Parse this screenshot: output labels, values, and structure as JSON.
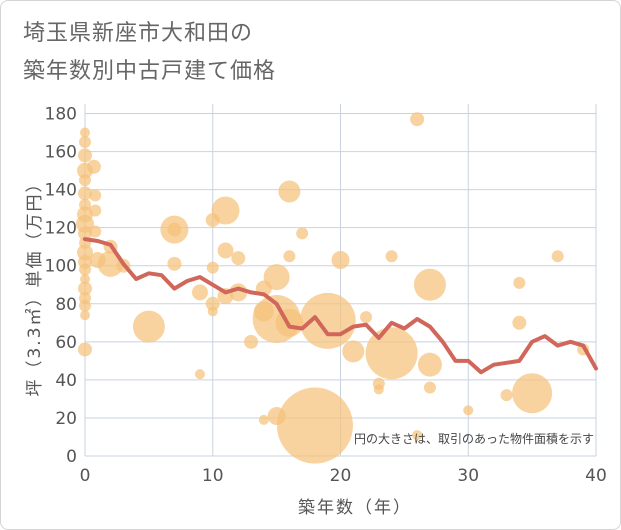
{
  "chart_data": {
    "type": "scatter",
    "title_lines": [
      "埼玉県新座市大和田の",
      "築年数別中古戸建て価格"
    ],
    "xlabel": "築年数（年）",
    "ylabel": "坪（3.3㎡）単価（万円）",
    "note": "円の大きさは、取引のあった物件面積を示す",
    "xlim": [
      0,
      40
    ],
    "ylim": [
      0,
      185
    ],
    "x_ticks": [
      0,
      10,
      20,
      30,
      40
    ],
    "y_ticks": [
      0,
      20,
      40,
      60,
      80,
      100,
      120,
      140,
      160,
      180
    ],
    "grid": true,
    "colors": {
      "bubble": "#f5c27a",
      "line": "#d0675a",
      "grid": "#c9d3e0",
      "text": "#555555"
    },
    "bubbles": [
      {
        "x": 0,
        "y": 170,
        "r": 5
      },
      {
        "x": 0,
        "y": 165,
        "r": 6
      },
      {
        "x": 0,
        "y": 158,
        "r": 7
      },
      {
        "x": 0,
        "y": 150,
        "r": 8
      },
      {
        "x": 0,
        "y": 145,
        "r": 6
      },
      {
        "x": 0,
        "y": 138,
        "r": 7
      },
      {
        "x": 0,
        "y": 132,
        "r": 6
      },
      {
        "x": 0,
        "y": 127,
        "r": 8
      },
      {
        "x": 0,
        "y": 122,
        "r": 9
      },
      {
        "x": 0,
        "y": 117,
        "r": 7
      },
      {
        "x": 0,
        "y": 112,
        "r": 6
      },
      {
        "x": 0,
        "y": 107,
        "r": 8
      },
      {
        "x": 0,
        "y": 102,
        "r": 7
      },
      {
        "x": 0,
        "y": 98,
        "r": 6
      },
      {
        "x": 0,
        "y": 93,
        "r": 5
      },
      {
        "x": 0,
        "y": 88,
        "r": 7
      },
      {
        "x": 0,
        "y": 83,
        "r": 6
      },
      {
        "x": 0,
        "y": 79,
        "r": 6
      },
      {
        "x": 0,
        "y": 74,
        "r": 5
      },
      {
        "x": 0,
        "y": 56,
        "r": 7
      },
      {
        "x": 0.7,
        "y": 152,
        "r": 7
      },
      {
        "x": 0.8,
        "y": 137,
        "r": 6
      },
      {
        "x": 0.8,
        "y": 129,
        "r": 6
      },
      {
        "x": 0.8,
        "y": 118,
        "r": 6
      },
      {
        "x": 1,
        "y": 103,
        "r": 8
      },
      {
        "x": 2,
        "y": 110,
        "r": 7
      },
      {
        "x": 2,
        "y": 101,
        "r": 13
      },
      {
        "x": 3,
        "y": 100,
        "r": 7
      },
      {
        "x": 5,
        "y": 68,
        "r": 16
      },
      {
        "x": 7,
        "y": 119,
        "r": 14
      },
      {
        "x": 7,
        "y": 119,
        "r": 7
      },
      {
        "x": 7,
        "y": 101,
        "r": 7
      },
      {
        "x": 9,
        "y": 43,
        "r": 5
      },
      {
        "x": 9,
        "y": 86,
        "r": 8
      },
      {
        "x": 10,
        "y": 124,
        "r": 7
      },
      {
        "x": 10,
        "y": 99,
        "r": 6
      },
      {
        "x": 10,
        "y": 80,
        "r": 7
      },
      {
        "x": 10,
        "y": 76,
        "r": 5
      },
      {
        "x": 11,
        "y": 129,
        "r": 14
      },
      {
        "x": 11,
        "y": 108,
        "r": 8
      },
      {
        "x": 11,
        "y": 84,
        "r": 8
      },
      {
        "x": 12,
        "y": 104,
        "r": 7
      },
      {
        "x": 12,
        "y": 86,
        "r": 9
      },
      {
        "x": 13,
        "y": 60,
        "r": 7
      },
      {
        "x": 14,
        "y": 88,
        "r": 8
      },
      {
        "x": 14,
        "y": 76,
        "r": 10
      },
      {
        "x": 14,
        "y": 19,
        "r": 5
      },
      {
        "x": 15,
        "y": 94,
        "r": 13
      },
      {
        "x": 15,
        "y": 72,
        "r": 24
      },
      {
        "x": 15,
        "y": 21,
        "r": 9
      },
      {
        "x": 16,
        "y": 139,
        "r": 11
      },
      {
        "x": 16,
        "y": 105,
        "r": 6
      },
      {
        "x": 16,
        "y": 70,
        "r": 14
      },
      {
        "x": 17,
        "y": 117,
        "r": 6
      },
      {
        "x": 18,
        "y": 16,
        "r": 38
      },
      {
        "x": 19,
        "y": 71,
        "r": 28
      },
      {
        "x": 20,
        "y": 103,
        "r": 9
      },
      {
        "x": 21,
        "y": 55,
        "r": 11
      },
      {
        "x": 22,
        "y": 73,
        "r": 6
      },
      {
        "x": 23,
        "y": 38,
        "r": 6
      },
      {
        "x": 23,
        "y": 35,
        "r": 5
      },
      {
        "x": 24,
        "y": 54,
        "r": 26
      },
      {
        "x": 24,
        "y": 105,
        "r": 6
      },
      {
        "x": 26,
        "y": 177,
        "r": 7
      },
      {
        "x": 26,
        "y": 11,
        "r": 5
      },
      {
        "x": 27,
        "y": 90,
        "r": 16
      },
      {
        "x": 27,
        "y": 48,
        "r": 12
      },
      {
        "x": 27,
        "y": 36,
        "r": 6
      },
      {
        "x": 30,
        "y": 24,
        "r": 5
      },
      {
        "x": 33,
        "y": 32,
        "r": 6
      },
      {
        "x": 34,
        "y": 91,
        "r": 6
      },
      {
        "x": 34,
        "y": 70,
        "r": 7
      },
      {
        "x": 35,
        "y": 33,
        "r": 20
      },
      {
        "x": 37,
        "y": 105,
        "r": 6
      },
      {
        "x": 39,
        "y": 56,
        "r": 6
      }
    ],
    "series": [
      {
        "x": [
          0,
          1,
          2,
          3,
          4,
          5,
          6,
          7,
          8,
          9,
          10,
          11,
          12,
          13,
          14,
          15,
          16,
          17,
          18,
          19,
          20,
          21,
          22,
          23,
          24,
          25,
          26,
          27,
          28,
          29,
          30,
          31,
          32,
          33,
          34,
          35,
          36,
          37,
          38,
          39,
          40
        ],
        "values": [
          114,
          113,
          111,
          101,
          93,
          96,
          95,
          88,
          92,
          94,
          90,
          86,
          88,
          86,
          85,
          80,
          68,
          67,
          73,
          64,
          64,
          68,
          69,
          62,
          70,
          67,
          72,
          68,
          60,
          50,
          50,
          44,
          48,
          49,
          50,
          60,
          63,
          58,
          60,
          58,
          46
        ]
      }
    ]
  }
}
